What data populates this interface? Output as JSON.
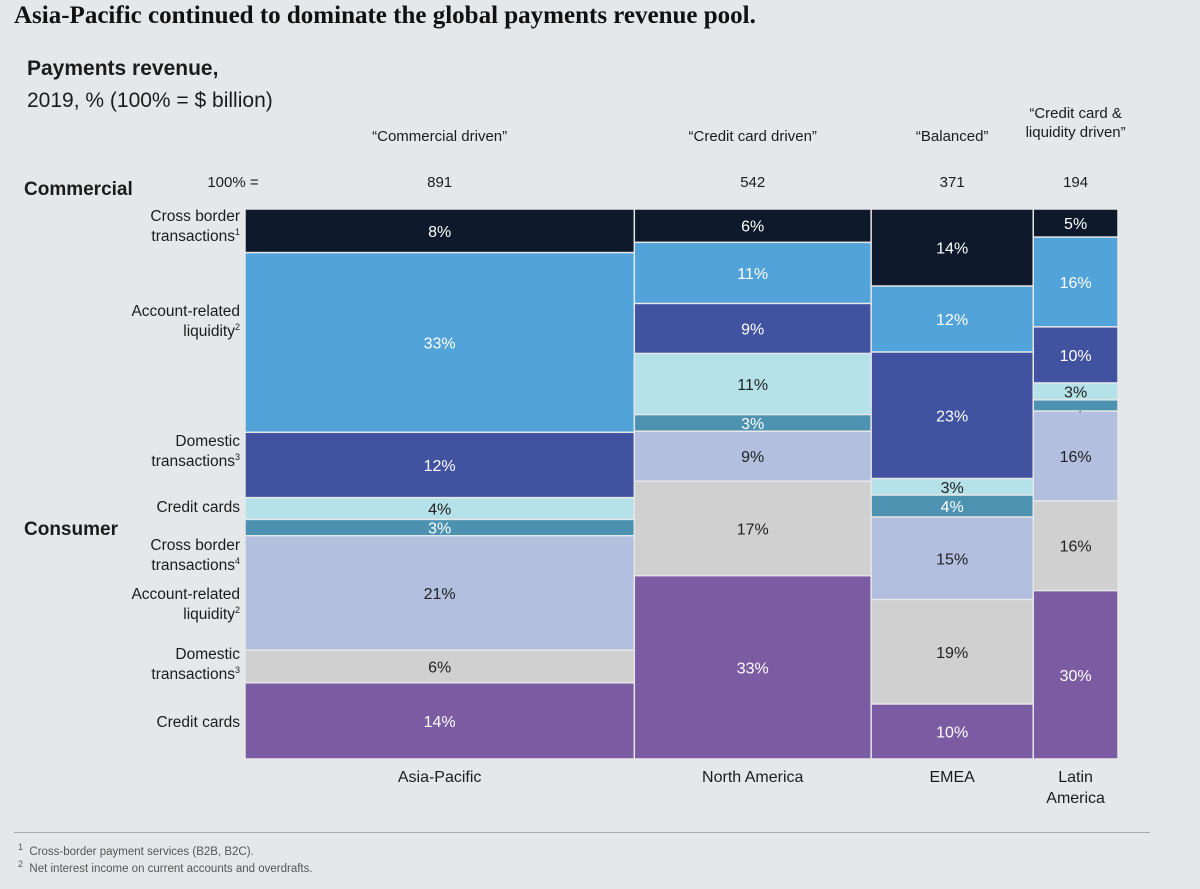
{
  "title": "Asia-Pacific continued to dominate the global payments revenue pool.",
  "chart_data": {
    "type": "marimekko",
    "title": "Payments revenue,",
    "subtitle": "2019, % (100% = $ billion)",
    "total_label": "100% =",
    "groups": [
      "Commercial",
      "Consumer"
    ],
    "segments": [
      {
        "name": "Cross border transactions",
        "sup": "1",
        "group": "Commercial",
        "color": "#0e1a2b"
      },
      {
        "name": "Account-related liquidity",
        "sup": "2",
        "group": "Commercial",
        "color": "#52a3d9"
      },
      {
        "name": "Domestic transactions",
        "sup": "3",
        "group": "Commercial",
        "color": "#4152a0"
      },
      {
        "name": "Credit cards",
        "sup": "",
        "group": "Commercial",
        "color": "#b5e1e9"
      },
      {
        "name": "Cross border transactions",
        "sup": "4",
        "group": "Consumer",
        "color": "#4d93b1"
      },
      {
        "name": "Account-related liquidity",
        "sup": "2",
        "group": "Consumer",
        "color": "#b3bfdf"
      },
      {
        "name": "Domestic transactions",
        "sup": "3",
        "group": "Consumer",
        "color": "#cfd0cf"
      },
      {
        "name": "Credit cards",
        "sup": "",
        "group": "Consumer",
        "color": "#7b5ca3"
      }
    ],
    "columns": [
      {
        "region": "Asia-Pacific",
        "total": 891,
        "archetype": "“Commercial driven”",
        "values": [
          8,
          33,
          12,
          4,
          3,
          21,
          6,
          14
        ]
      },
      {
        "region": "North America",
        "total": 542,
        "archetype": "“Credit card driven”",
        "values": [
          6,
          11,
          9,
          11,
          3,
          9,
          17,
          33
        ]
      },
      {
        "region": "EMEA",
        "total": 371,
        "archetype": "“Balanced”",
        "values": [
          14,
          12,
          23,
          3,
          4,
          15,
          19,
          10
        ]
      },
      {
        "region": "Latin America",
        "total": 194,
        "archetype": "“Credit card & liquidity driven”",
        "values": [
          5,
          16,
          10,
          3,
          2,
          16,
          16,
          30
        ]
      }
    ]
  },
  "footnotes": [
    {
      "mark": "1",
      "text": "Cross-border payment services (B2B, B2C)."
    },
    {
      "mark": "2",
      "text": "Net interest income on current accounts and overdrafts."
    }
  ]
}
